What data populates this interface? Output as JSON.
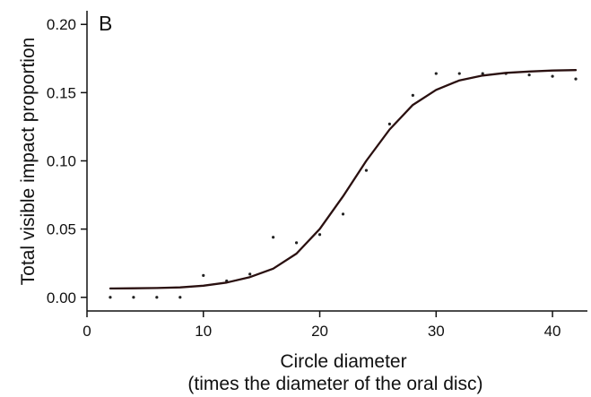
{
  "chart_data": {
    "type": "scatter",
    "panel_label": "B",
    "xlabel": "Circle diameter",
    "xlabel_line2": "(times the diameter of the oral disc)",
    "ylabel": "Total visible impact proportion",
    "xlim": [
      0,
      43
    ],
    "ylim": [
      -0.01,
      0.21
    ],
    "xticks": [
      0,
      10,
      20,
      30,
      40
    ],
    "yticks": [
      0.0,
      0.05,
      0.1,
      0.15,
      0.2
    ],
    "ytick_labels": [
      "0.00",
      "0.05",
      "0.10",
      "0.15",
      "0.20"
    ],
    "grid": false,
    "legend": "none",
    "series": [
      {
        "kind": "points",
        "x": [
          2,
          4,
          6,
          8,
          10,
          12,
          14,
          16,
          18,
          20,
          22,
          24,
          26,
          28,
          30,
          32,
          34,
          36,
          38,
          40,
          42
        ],
        "y": [
          0.0,
          0.0,
          0.0,
          0.0,
          0.016,
          0.012,
          0.017,
          0.044,
          0.04,
          0.046,
          0.061,
          0.093,
          0.127,
          0.148,
          0.164,
          0.164,
          0.164,
          0.164,
          0.163,
          0.162,
          0.16
        ]
      },
      {
        "kind": "fitted-curve",
        "x": [
          2,
          4,
          6,
          8,
          10,
          12,
          14,
          16,
          18,
          20,
          22,
          24,
          26,
          28,
          30,
          32,
          34,
          36,
          38,
          40,
          42
        ],
        "y": [
          0.0065,
          0.0066,
          0.0068,
          0.0073,
          0.0085,
          0.0108,
          0.0148,
          0.021,
          0.032,
          0.05,
          0.074,
          0.1,
          0.123,
          0.141,
          0.152,
          0.159,
          0.1625,
          0.1645,
          0.1655,
          0.1662,
          0.1665
        ]
      }
    ],
    "colors": {
      "points": "#222222",
      "curve": "#2a1010",
      "axes": "#111111"
    }
  }
}
